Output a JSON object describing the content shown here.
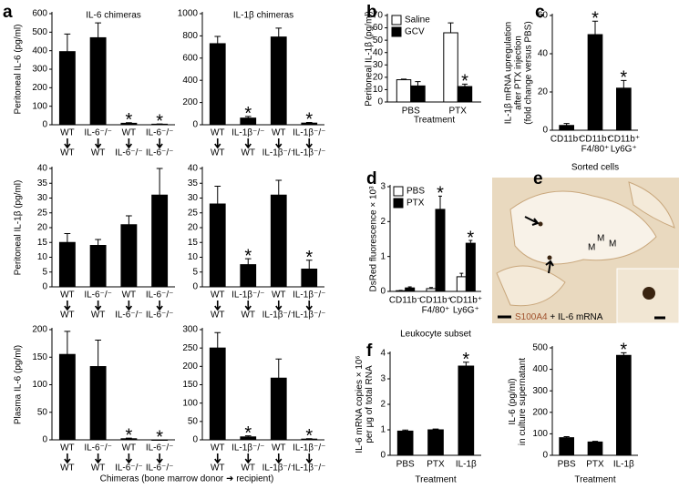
{
  "shared_labels": {
    "a_xlabel": "Chimeras (bone marrow donor ➜ recipient)"
  },
  "image_panel": {
    "panel": "e",
    "labels": [
      "M",
      "M",
      "M"
    ],
    "legend": [
      "S100A4",
      " + IL-6 mRNA"
    ]
  },
  "chart_data": [
    {
      "type": "bar",
      "panel": "a",
      "title": "IL-6 chimeras",
      "ylabel": [
        "Peritoneal IL-6 (pg/ml)"
      ],
      "category_arrow": true,
      "categories": [
        [
          "WT",
          "WT"
        ],
        [
          "IL-6⁻/⁻",
          "WT"
        ],
        [
          "WT",
          "IL-6⁻/⁻"
        ],
        [
          "IL-6⁻/⁻",
          "IL-6⁻/⁻"
        ]
      ],
      "values": [
        395,
        470,
        8,
        3
      ],
      "errors": [
        95,
        80,
        3,
        1
      ],
      "stars": [
        null,
        null,
        "*",
        "*"
      ],
      "color": "#000000",
      "ylim": [
        0,
        600
      ],
      "yticks": [
        0,
        100,
        200,
        300,
        400,
        500,
        600
      ]
    },
    {
      "type": "bar",
      "title": "IL-1β chimeras",
      "category_arrow": true,
      "categories": [
        [
          "WT",
          "WT"
        ],
        [
          "IL-1β⁻/⁻",
          "WT"
        ],
        [
          "WT",
          "IL-1β⁻/⁻"
        ],
        [
          "IL-1β⁻/⁻",
          "IL-1β⁻/⁻"
        ]
      ],
      "values": [
        730,
        60,
        790,
        15
      ],
      "errors": [
        65,
        15,
        80,
        6
      ],
      "stars": [
        null,
        "*",
        null,
        "*"
      ],
      "color": "#000000",
      "ylim": [
        0,
        1000
      ],
      "yticks": [
        0,
        200,
        400,
        600,
        800,
        1000
      ]
    },
    {
      "type": "bar",
      "ylabel": [
        "Peritoneal IL-1β (pg/ml)"
      ],
      "category_arrow": true,
      "categories": [
        [
          "WT",
          "WT"
        ],
        [
          "IL-6⁻/⁻",
          "WT"
        ],
        [
          "WT",
          "IL-6⁻/⁻"
        ],
        [
          "IL-6⁻/⁻",
          "IL-6⁻/⁻"
        ]
      ],
      "values": [
        15,
        14,
        21,
        31
      ],
      "errors": [
        3,
        2,
        3,
        9
      ],
      "stars": [
        null,
        null,
        null,
        null
      ],
      "color": "#000000",
      "ylim": [
        0,
        40
      ],
      "yticks": [
        0,
        5,
        10,
        15,
        20,
        25,
        30,
        35,
        40
      ]
    },
    {
      "type": "bar",
      "category_arrow": true,
      "categories": [
        [
          "WT",
          "WT"
        ],
        [
          "IL-1β⁻/⁻",
          "WT"
        ],
        [
          "WT",
          "IL-1β⁻/⁻"
        ],
        [
          "IL-1β⁻/⁻",
          "IL-1β⁻/⁻"
        ]
      ],
      "values": [
        28,
        7.5,
        31,
        6
      ],
      "errors": [
        6,
        2,
        5,
        3
      ],
      "stars": [
        null,
        "*",
        null,
        "*"
      ],
      "color": "#000000",
      "ylim": [
        0,
        40
      ],
      "yticks": [
        0,
        5,
        10,
        15,
        20,
        25,
        30,
        35,
        40
      ]
    },
    {
      "type": "bar",
      "ylabel": [
        "Plasma IL-6 (pg/ml)"
      ],
      "category_arrow": true,
      "categories": [
        [
          "WT",
          "WT"
        ],
        [
          "IL-6⁻/⁻",
          "WT"
        ],
        [
          "WT",
          "IL-6⁻/⁻"
        ],
        [
          "IL-6⁻/⁻",
          "IL-6⁻/⁻"
        ]
      ],
      "values": [
        155,
        133,
        2,
        0
      ],
      "errors": [
        42,
        48,
        1,
        0
      ],
      "stars": [
        null,
        null,
        "*",
        "*"
      ],
      "color": "#000000",
      "ylim": [
        0,
        200
      ],
      "yticks": [
        0,
        50,
        100,
        150,
        200
      ]
    },
    {
      "type": "bar",
      "category_arrow": true,
      "categories": [
        [
          "WT",
          "WT"
        ],
        [
          "IL-1β⁻/⁻",
          "WT"
        ],
        [
          "WT",
          "IL-1β⁻/⁻"
        ],
        [
          "IL-1β⁻/⁻",
          "IL-1β⁻/⁻"
        ]
      ],
      "values": [
        250,
        8,
        168,
        2
      ],
      "errors": [
        42,
        3,
        52,
        1
      ],
      "stars": [
        null,
        "*",
        null,
        "*"
      ],
      "color": "#000000",
      "ylim": [
        0,
        300
      ],
      "yticks": [
        0,
        50,
        100,
        150,
        200,
        250,
        300
      ]
    },
    {
      "type": "grouped_bar",
      "panel": "b",
      "ylabel": [
        "Peritoneal IL-1β (pg/ml)"
      ],
      "xlabel": "Treatment",
      "categories": [
        [
          "PBS"
        ],
        [
          "PTX"
        ]
      ],
      "series": [
        {
          "name": "Saline",
          "color": "#ffffff",
          "values": [
            18,
            56
          ],
          "errors": [
            0.5,
            8
          ],
          "stars": [
            null,
            null
          ]
        },
        {
          "name": "GCV",
          "color": "#000000",
          "values": [
            13,
            12.5
          ],
          "errors": [
            3.5,
            2
          ],
          "stars": [
            null,
            "*"
          ]
        }
      ],
      "ylim": [
        0,
        70
      ],
      "yticks": [
        0,
        10,
        20,
        30,
        40,
        50,
        60,
        70
      ],
      "legend": "top-left"
    },
    {
      "type": "bar",
      "panel": "c",
      "ylabel": [
        "IL-1β mRNA upregulation",
        "after PTX injection",
        "(fold change versus PBS)"
      ],
      "xlabel": "Sorted cells",
      "categories": [
        [
          "CD11b⁻"
        ],
        [
          "CD11b⁺",
          "F4/80⁺"
        ],
        [
          "CD11b⁺",
          "Ly6G⁺"
        ]
      ],
      "values": [
        2.5,
        50,
        22
      ],
      "errors": [
        1,
        7,
        4
      ],
      "stars": [
        null,
        "*",
        "*"
      ],
      "color": "#000000",
      "ylim": [
        0,
        60
      ],
      "yticks": [
        0,
        20,
        40,
        60
      ]
    },
    {
      "type": "grouped_bar",
      "panel": "d",
      "ylabel": [
        "DsRed fluorescence × 10³"
      ],
      "xlabel": "Leukocyte subset",
      "categories": [
        [
          "CD11b⁻"
        ],
        [
          "CD11b⁺",
          "F4/80⁺"
        ],
        [
          "CD11b⁺",
          "Ly6G⁺"
        ]
      ],
      "series": [
        {
          "name": "PBS",
          "color": "#ffffff",
          "values": [
            0.02,
            0.08,
            0.42
          ],
          "errors": [
            0.01,
            0.03,
            0.1
          ],
          "stars": [
            null,
            null,
            null
          ]
        },
        {
          "name": "PTX",
          "color": "#000000",
          "values": [
            0.1,
            2.35,
            1.38
          ],
          "errors": [
            0.03,
            0.38,
            0.08
          ],
          "stars": [
            null,
            "*",
            "*"
          ]
        }
      ],
      "ylim": [
        0,
        3
      ],
      "yticks": [
        0,
        1,
        2,
        3
      ],
      "legend": "top-left"
    },
    {
      "type": "bar",
      "panel": "f",
      "ylabel": [
        "IL-6 mRNA copies × 10⁶",
        "per μg of total RNA"
      ],
      "xlabel": "Treatment",
      "categories": [
        [
          "PBS"
        ],
        [
          "PTX"
        ],
        [
          "IL-1β"
        ]
      ],
      "values": [
        0.95,
        1.0,
        3.5
      ],
      "errors": [
        0.04,
        0.03,
        0.15
      ],
      "stars": [
        null,
        null,
        "*"
      ],
      "color": "#000000",
      "ylim": [
        0,
        4
      ],
      "yticks": [
        0,
        1,
        2,
        3,
        4
      ]
    },
    {
      "type": "bar",
      "ylabel": [
        "IL-6 (pg/ml)",
        "in culture supernatant"
      ],
      "xlabel": "Treatment",
      "categories": [
        [
          "PBS"
        ],
        [
          "PTX"
        ],
        [
          "IL-1β"
        ]
      ],
      "values": [
        82,
        62,
        465
      ],
      "errors": [
        5,
        3,
        12
      ],
      "stars": [
        null,
        null,
        "*"
      ],
      "color": "#000000",
      "ylim": [
        0,
        500
      ],
      "yticks": [
        0,
        100,
        200,
        300,
        400,
        500
      ]
    }
  ]
}
